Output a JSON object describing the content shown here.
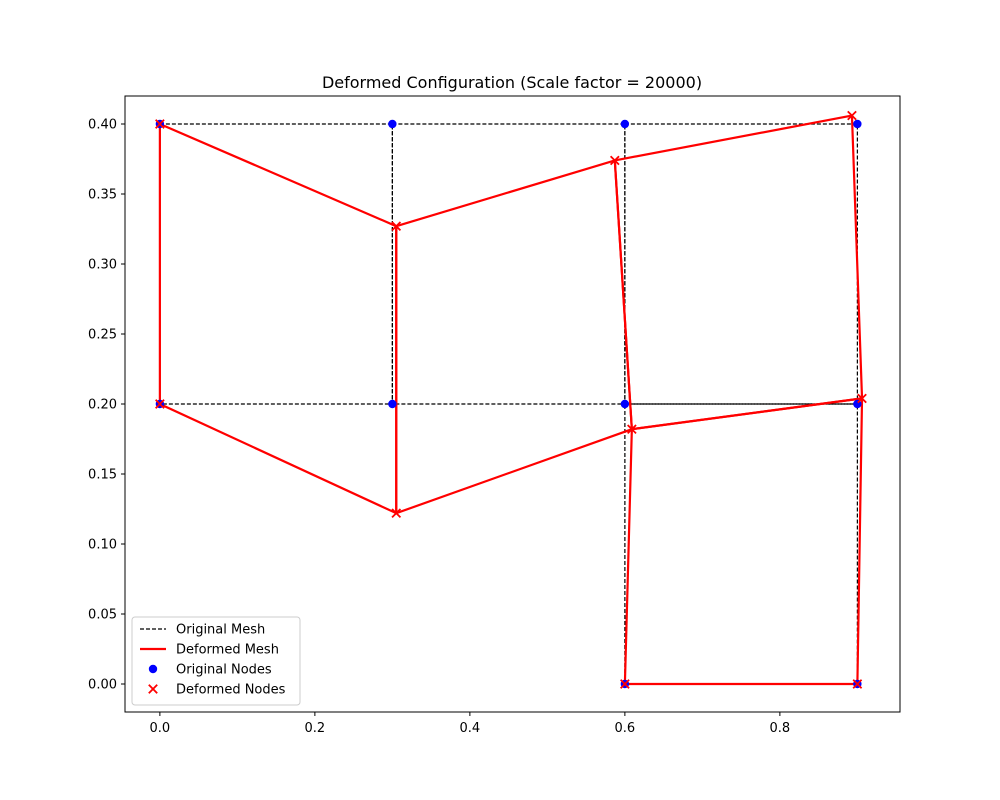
{
  "chart_data": {
    "type": "line",
    "title": "Deformed Configuration (Scale factor = 20000)",
    "xlabel": "",
    "ylabel": "",
    "xlim": [
      -0.045,
      0.955
    ],
    "ylim": [
      -0.02,
      0.42
    ],
    "x_ticks": [
      0.0,
      0.2,
      0.4,
      0.6,
      0.8
    ],
    "x_tick_labels": [
      "0.0",
      "0.2",
      "0.4",
      "0.6",
      "0.8"
    ],
    "y_ticks": [
      0.0,
      0.05,
      0.1,
      0.15,
      0.2,
      0.25,
      0.3,
      0.35,
      0.4
    ],
    "y_tick_labels": [
      "0.00",
      "0.05",
      "0.10",
      "0.15",
      "0.20",
      "0.25",
      "0.30",
      "0.35",
      "0.40"
    ],
    "grid": false,
    "legend_position": "lower-left",
    "legend": [
      {
        "label": "Original Mesh",
        "kind": "dashed-line",
        "color": "#000000"
      },
      {
        "label": "Deformed Mesh",
        "kind": "line",
        "color": "#ff0000"
      },
      {
        "label": "Original Nodes",
        "kind": "circle-marker",
        "color": "#0000ff"
      },
      {
        "label": "Deformed Nodes",
        "kind": "x-marker",
        "color": "#ff0000"
      }
    ],
    "original_nodes": [
      {
        "id": 0,
        "x": 0.0,
        "y": 0.4
      },
      {
        "id": 1,
        "x": 0.3,
        "y": 0.4
      },
      {
        "id": 2,
        "x": 0.6,
        "y": 0.4
      },
      {
        "id": 3,
        "x": 0.9,
        "y": 0.4
      },
      {
        "id": 4,
        "x": 0.0,
        "y": 0.2
      },
      {
        "id": 5,
        "x": 0.3,
        "y": 0.2
      },
      {
        "id": 6,
        "x": 0.6,
        "y": 0.2
      },
      {
        "id": 7,
        "x": 0.9,
        "y": 0.2
      },
      {
        "id": 8,
        "x": 0.6,
        "y": 0.0
      },
      {
        "id": 9,
        "x": 0.9,
        "y": 0.0
      }
    ],
    "deformed_nodes": [
      {
        "id": 0,
        "x": 0.0,
        "y": 0.4
      },
      {
        "id": 1,
        "x": 0.305,
        "y": 0.327
      },
      {
        "id": 2,
        "x": 0.587,
        "y": 0.374
      },
      {
        "id": 3,
        "x": 0.893,
        "y": 0.406
      },
      {
        "id": 4,
        "x": 0.0,
        "y": 0.2
      },
      {
        "id": 5,
        "x": 0.305,
        "y": 0.122
      },
      {
        "id": 6,
        "x": 0.609,
        "y": 0.182
      },
      {
        "id": 7,
        "x": 0.906,
        "y": 0.204
      },
      {
        "id": 8,
        "x": 0.6,
        "y": 0.0
      },
      {
        "id": 9,
        "x": 0.9,
        "y": 0.0
      }
    ],
    "elements": [
      [
        0,
        1,
        5,
        4
      ],
      [
        1,
        2,
        6,
        5
      ],
      [
        2,
        3,
        7,
        6
      ],
      [
        6,
        7,
        9,
        8
      ]
    ],
    "colors": {
      "original_mesh": "#000000",
      "deformed_mesh": "#ff0000",
      "original_nodes": "#0000ff",
      "deformed_nodes": "#ff0000"
    }
  }
}
